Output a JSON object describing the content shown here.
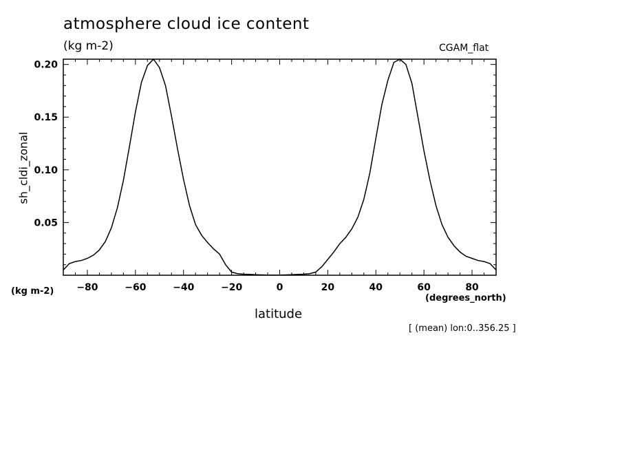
{
  "chart_data": {
    "type": "line",
    "title": "atmosphere cloud ice content",
    "title_units": "(kg m-2)",
    "model_label": "CGAM_flat",
    "ylabel": "sh_cldi_zonal",
    "y_units": "(kg m-2)",
    "xlabel": "latitude",
    "x_units": "(degrees_north)",
    "annotation": "[ (mean) lon:0..356.25 ]",
    "xlim": [
      -90,
      90
    ],
    "ylim": [
      0,
      0.205
    ],
    "x_ticks": [
      -80,
      -60,
      -40,
      -20,
      0,
      20,
      40,
      60,
      80
    ],
    "x_tick_labels": [
      "−80",
      "−60",
      "−40",
      "−20",
      "0",
      "20",
      "40",
      "60",
      "80"
    ],
    "y_ticks": [
      0.05,
      0.1,
      0.15,
      0.2
    ],
    "y_tick_labels": [
      "0.05",
      "0.10",
      "0.15",
      "0.20"
    ],
    "grid": false,
    "series": [
      {
        "color": "#000000",
        "x": [
          -90,
          -87.5,
          -85,
          -82.5,
          -80,
          -77.5,
          -75,
          -72.5,
          -70,
          -67.5,
          -65,
          -62.5,
          -60,
          -57.5,
          -55,
          -52.5,
          -50,
          -47.5,
          -45,
          -42.5,
          -40,
          -37.5,
          -35,
          -32.5,
          -30,
          -27.5,
          -25,
          -22.5,
          -20,
          -17.5,
          -15,
          -12.5,
          -10,
          -7.5,
          -5,
          -2.5,
          0,
          2.5,
          5,
          7.5,
          10,
          12.5,
          15,
          17.5,
          20,
          22.5,
          25,
          27.5,
          30,
          32.5,
          35,
          37.5,
          40,
          42.5,
          45,
          47.5,
          50,
          52.5,
          55,
          57.5,
          60,
          62.5,
          65,
          67.5,
          70,
          72.5,
          75,
          77.5,
          80,
          82.5,
          85,
          87.5,
          90
        ],
        "values": [
          0.005,
          0.011,
          0.013,
          0.014,
          0.016,
          0.019,
          0.024,
          0.032,
          0.045,
          0.064,
          0.09,
          0.122,
          0.155,
          0.183,
          0.199,
          0.205,
          0.197,
          0.18,
          0.151,
          0.12,
          0.091,
          0.066,
          0.048,
          0.038,
          0.031,
          0.025,
          0.02,
          0.01,
          0.003,
          0.0015,
          0.001,
          0.0008,
          0.0005,
          0.0003,
          0.0002,
          0.0002,
          0.0002,
          0.0003,
          0.0005,
          0.0008,
          0.001,
          0.0015,
          0.003,
          0.008,
          0.015,
          0.022,
          0.03,
          0.036,
          0.044,
          0.055,
          0.072,
          0.097,
          0.13,
          0.162,
          0.185,
          0.202,
          0.205,
          0.2,
          0.182,
          0.15,
          0.118,
          0.09,
          0.066,
          0.048,
          0.036,
          0.028,
          0.022,
          0.018,
          0.016,
          0.014,
          0.013,
          0.011,
          0.005
        ]
      }
    ]
  }
}
